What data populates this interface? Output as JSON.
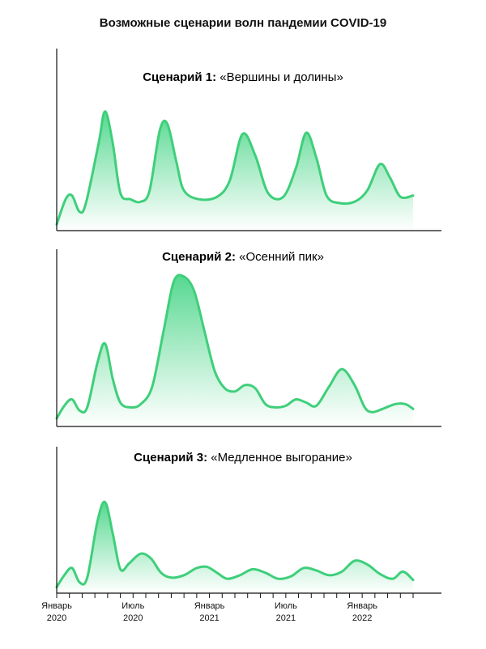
{
  "title": "Возможные сценарии волн пандемии COVID-19",
  "colors": {
    "line": "#3ecf7a",
    "fill_top": "#4dd68a",
    "fill_bottom": "#ffffff",
    "axis": "#111111"
  },
  "chart_data": {
    "type": "area",
    "x_labels": [
      {
        "month": 0,
        "line1": "Январь",
        "line2": "2020"
      },
      {
        "month": 6,
        "line1": "Июль",
        "line2": "2020"
      },
      {
        "month": 12,
        "line1": "Январь",
        "line2": "2021"
      },
      {
        "month": 18,
        "line1": "Июль",
        "line2": "2021"
      },
      {
        "month": 24,
        "line1": "Январь",
        "line2": "2022"
      }
    ],
    "tick_months": [
      0,
      1,
      2,
      3,
      4,
      5,
      6,
      7,
      8,
      9,
      10,
      11,
      12,
      13,
      14,
      15,
      16,
      17,
      18,
      19,
      20,
      21,
      22,
      23,
      24,
      25,
      26,
      27,
      28
    ],
    "x_range": [
      0,
      28
    ],
    "grid": false,
    "scenarios": [
      {
        "prefix": "Сценарий 1:",
        "name": "«Вершины и долины»",
        "ylim": [
          0,
          100
        ],
        "points": [
          [
            0,
            5
          ],
          [
            0.7,
            25
          ],
          [
            1.2,
            28
          ],
          [
            1.8,
            15
          ],
          [
            2.3,
            22
          ],
          [
            3.3,
            70
          ],
          [
            3.8,
            95
          ],
          [
            4.4,
            70
          ],
          [
            5.0,
            30
          ],
          [
            5.8,
            25
          ],
          [
            6.6,
            23
          ],
          [
            7.3,
            32
          ],
          [
            8.1,
            80
          ],
          [
            8.7,
            85
          ],
          [
            9.4,
            55
          ],
          [
            10.0,
            32
          ],
          [
            11.2,
            25
          ],
          [
            12.6,
            27
          ],
          [
            13.6,
            40
          ],
          [
            14.6,
            77
          ],
          [
            15.6,
            60
          ],
          [
            16.6,
            30
          ],
          [
            17.8,
            27
          ],
          [
            18.8,
            50
          ],
          [
            19.6,
            78
          ],
          [
            20.4,
            58
          ],
          [
            21.2,
            28
          ],
          [
            22.2,
            22
          ],
          [
            23.4,
            23
          ],
          [
            24.4,
            32
          ],
          [
            25.4,
            53
          ],
          [
            26.2,
            42
          ],
          [
            27.0,
            27
          ],
          [
            28.0,
            28
          ]
        ]
      },
      {
        "prefix": "Сценарий 2:",
        "name": "«Осенний пик»",
        "ylim": [
          0,
          100
        ],
        "points": [
          [
            0,
            5
          ],
          [
            0.6,
            13
          ],
          [
            1.2,
            17
          ],
          [
            1.8,
            10
          ],
          [
            2.4,
            12
          ],
          [
            3.2,
            40
          ],
          [
            3.8,
            52
          ],
          [
            4.4,
            30
          ],
          [
            5.0,
            15
          ],
          [
            5.8,
            12
          ],
          [
            6.6,
            14
          ],
          [
            7.5,
            25
          ],
          [
            8.4,
            60
          ],
          [
            9.2,
            91
          ],
          [
            10.0,
            94
          ],
          [
            10.8,
            85
          ],
          [
            11.6,
            60
          ],
          [
            12.4,
            35
          ],
          [
            13.2,
            24
          ],
          [
            14.0,
            22
          ],
          [
            14.8,
            26
          ],
          [
            15.6,
            24
          ],
          [
            16.4,
            14
          ],
          [
            17.2,
            12
          ],
          [
            18.0,
            13
          ],
          [
            18.8,
            17
          ],
          [
            19.6,
            15
          ],
          [
            20.4,
            13
          ],
          [
            21.4,
            25
          ],
          [
            22.4,
            36
          ],
          [
            23.4,
            26
          ],
          [
            24.2,
            12
          ],
          [
            24.8,
            9
          ],
          [
            25.6,
            11
          ],
          [
            26.6,
            14
          ],
          [
            27.4,
            14
          ],
          [
            28.0,
            11
          ]
        ]
      },
      {
        "prefix": "Сценарий 3:",
        "name": "«Медленное выгорание»",
        "ylim": [
          0,
          100
        ],
        "points": [
          [
            0,
            5
          ],
          [
            0.6,
            15
          ],
          [
            1.2,
            21
          ],
          [
            1.8,
            9
          ],
          [
            2.4,
            13
          ],
          [
            3.2,
            60
          ],
          [
            3.8,
            76
          ],
          [
            4.4,
            50
          ],
          [
            5.0,
            20
          ],
          [
            5.7,
            25
          ],
          [
            6.6,
            33
          ],
          [
            7.4,
            29
          ],
          [
            8.2,
            17
          ],
          [
            9.0,
            13
          ],
          [
            10.0,
            15
          ],
          [
            11.0,
            21
          ],
          [
            11.8,
            22
          ],
          [
            12.6,
            17
          ],
          [
            13.4,
            12
          ],
          [
            14.4,
            15
          ],
          [
            15.4,
            20
          ],
          [
            16.4,
            17
          ],
          [
            17.4,
            12
          ],
          [
            18.4,
            14
          ],
          [
            19.4,
            21
          ],
          [
            20.4,
            19
          ],
          [
            21.4,
            15
          ],
          [
            22.4,
            18
          ],
          [
            23.4,
            27
          ],
          [
            24.4,
            24
          ],
          [
            25.4,
            16
          ],
          [
            26.4,
            12
          ],
          [
            27.2,
            18
          ],
          [
            28.0,
            11
          ]
        ]
      }
    ]
  }
}
